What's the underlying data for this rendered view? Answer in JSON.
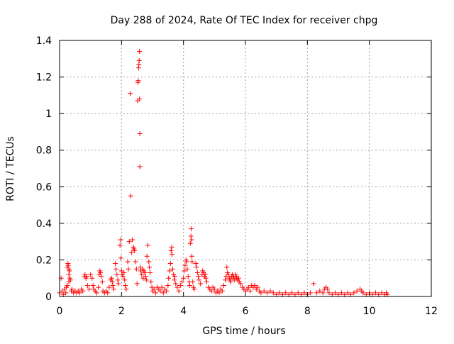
{
  "chart_data": {
    "type": "scatter",
    "title": "Day 288 of 2024, Rate Of TEC Index for receiver chpg",
    "xlabel": "GPS time / hours",
    "ylabel": "ROTI / TECUs",
    "xlim": [
      0,
      12
    ],
    "ylim": [
      0,
      1.4
    ],
    "xticks": [
      0,
      2,
      4,
      6,
      8,
      10,
      12
    ],
    "xtick_labels": [
      "0",
      "2",
      "4",
      "6",
      "8",
      "10",
      "12"
    ],
    "yticks": [
      0,
      0.2,
      0.4,
      0.6,
      0.8,
      1.0,
      1.2,
      1.4
    ],
    "ytick_labels": [
      "0",
      "0.2",
      "0.4",
      "0.6",
      "0.8",
      "1",
      "1.2",
      "1.4"
    ],
    "grid": true,
    "marker": "+",
    "color": "#ff0000",
    "series": [
      {
        "name": "ROTI",
        "points": [
          [
            0.0,
            0.02
          ],
          [
            0.05,
            0.1
          ],
          [
            0.08,
            0.03
          ],
          [
            0.12,
            0.01
          ],
          [
            0.15,
            0.04
          ],
          [
            0.2,
            0.02
          ],
          [
            0.22,
            0.05
          ],
          [
            0.25,
            0.16
          ],
          [
            0.27,
            0.18
          ],
          [
            0.28,
            0.17
          ],
          [
            0.3,
            0.15
          ],
          [
            0.3,
            0.12
          ],
          [
            0.32,
            0.14
          ],
          [
            0.33,
            0.1
          ],
          [
            0.3,
            0.08
          ],
          [
            0.35,
            0.09
          ],
          [
            0.25,
            0.06
          ],
          [
            0.38,
            0.03
          ],
          [
            0.4,
            0.04
          ],
          [
            0.45,
            0.02
          ],
          [
            0.5,
            0.03
          ],
          [
            0.55,
            0.02
          ],
          [
            0.6,
            0.03
          ],
          [
            0.65,
            0.02
          ],
          [
            0.7,
            0.04
          ],
          [
            0.75,
            0.03
          ],
          [
            0.8,
            0.11
          ],
          [
            0.82,
            0.12
          ],
          [
            0.85,
            0.1
          ],
          [
            0.88,
            0.11
          ],
          [
            0.9,
            0.06
          ],
          [
            0.95,
            0.04
          ],
          [
            1.0,
            0.12
          ],
          [
            1.05,
            0.1
          ],
          [
            1.08,
            0.06
          ],
          [
            1.1,
            0.04
          ],
          [
            1.15,
            0.03
          ],
          [
            1.2,
            0.02
          ],
          [
            1.25,
            0.05
          ],
          [
            1.28,
            0.12
          ],
          [
            1.3,
            0.14
          ],
          [
            1.32,
            0.13
          ],
          [
            1.35,
            0.11
          ],
          [
            1.38,
            0.08
          ],
          [
            1.4,
            0.03
          ],
          [
            1.45,
            0.02
          ],
          [
            1.5,
            0.03
          ],
          [
            1.55,
            0.02
          ],
          [
            1.6,
            0.05
          ],
          [
            1.65,
            0.09
          ],
          [
            1.68,
            0.1
          ],
          [
            1.7,
            0.08
          ],
          [
            1.72,
            0.06
          ],
          [
            1.75,
            0.04
          ],
          [
            1.8,
            0.18
          ],
          [
            1.82,
            0.15
          ],
          [
            1.85,
            0.12
          ],
          [
            1.88,
            0.09
          ],
          [
            1.9,
            0.07
          ],
          [
            1.95,
            0.28
          ],
          [
            1.97,
            0.31
          ],
          [
            1.98,
            0.21
          ],
          [
            2.0,
            0.14
          ],
          [
            2.02,
            0.12
          ],
          [
            2.05,
            0.11
          ],
          [
            2.08,
            0.13
          ],
          [
            2.1,
            0.09
          ],
          [
            2.12,
            0.06
          ],
          [
            2.15,
            0.04
          ],
          [
            2.2,
            0.19
          ],
          [
            2.22,
            0.15
          ],
          [
            2.25,
            0.3
          ],
          [
            2.28,
            1.11
          ],
          [
            2.3,
            0.55
          ],
          [
            2.32,
            0.24
          ],
          [
            2.35,
            0.31
          ],
          [
            2.38,
            0.27
          ],
          [
            2.4,
            0.26
          ],
          [
            2.42,
            0.25
          ],
          [
            2.45,
            0.19
          ],
          [
            2.48,
            0.15
          ],
          [
            2.5,
            0.07
          ],
          [
            2.52,
            1.07
          ],
          [
            2.53,
            1.17
          ],
          [
            2.54,
            1.18
          ],
          [
            2.55,
            1.25
          ],
          [
            2.56,
            1.27
          ],
          [
            2.57,
            1.29
          ],
          [
            2.58,
            1.34
          ],
          [
            2.58,
            1.08
          ],
          [
            2.59,
            0.89
          ],
          [
            2.59,
            0.71
          ],
          [
            2.6,
            0.16
          ],
          [
            2.62,
            0.14
          ],
          [
            2.65,
            0.12
          ],
          [
            2.68,
            0.15
          ],
          [
            2.7,
            0.1
          ],
          [
            2.72,
            0.14
          ],
          [
            2.75,
            0.13
          ],
          [
            2.78,
            0.11
          ],
          [
            2.8,
            0.09
          ],
          [
            2.82,
            0.22
          ],
          [
            2.85,
            0.28
          ],
          [
            2.88,
            0.19
          ],
          [
            2.9,
            0.16
          ],
          [
            2.92,
            0.13
          ],
          [
            2.95,
            0.08
          ],
          [
            2.98,
            0.05
          ],
          [
            3.0,
            0.03
          ],
          [
            3.05,
            0.04
          ],
          [
            3.1,
            0.02
          ],
          [
            3.15,
            0.05
          ],
          [
            3.2,
            0.04
          ],
          [
            3.25,
            0.03
          ],
          [
            3.3,
            0.05
          ],
          [
            3.35,
            0.02
          ],
          [
            3.4,
            0.04
          ],
          [
            3.45,
            0.03
          ],
          [
            3.5,
            0.06
          ],
          [
            3.52,
            0.1
          ],
          [
            3.55,
            0.14
          ],
          [
            3.58,
            0.18
          ],
          [
            3.6,
            0.25
          ],
          [
            3.62,
            0.27
          ],
          [
            3.63,
            0.23
          ],
          [
            3.65,
            0.15
          ],
          [
            3.68,
            0.12
          ],
          [
            3.7,
            0.09
          ],
          [
            3.72,
            0.11
          ],
          [
            3.75,
            0.07
          ],
          [
            3.8,
            0.05
          ],
          [
            3.85,
            0.03
          ],
          [
            3.9,
            0.06
          ],
          [
            3.95,
            0.08
          ],
          [
            4.0,
            0.1
          ],
          [
            4.02,
            0.14
          ],
          [
            4.05,
            0.17
          ],
          [
            4.08,
            0.2
          ],
          [
            4.1,
            0.19
          ],
          [
            4.12,
            0.15
          ],
          [
            4.15,
            0.11
          ],
          [
            4.18,
            0.08
          ],
          [
            4.2,
            0.06
          ],
          [
            4.22,
            0.29
          ],
          [
            4.24,
            0.33
          ],
          [
            4.25,
            0.37
          ],
          [
            4.26,
            0.31
          ],
          [
            4.27,
            0.22
          ],
          [
            4.28,
            0.19
          ],
          [
            4.3,
            0.08
          ],
          [
            4.32,
            0.05
          ],
          [
            4.35,
            0.04
          ],
          [
            4.4,
            0.18
          ],
          [
            4.42,
            0.16
          ],
          [
            4.45,
            0.13
          ],
          [
            4.48,
            0.11
          ],
          [
            4.5,
            0.09
          ],
          [
            4.55,
            0.07
          ],
          [
            4.6,
            0.12
          ],
          [
            4.62,
            0.14
          ],
          [
            4.65,
            0.13
          ],
          [
            4.68,
            0.11
          ],
          [
            4.7,
            0.12
          ],
          [
            4.72,
            0.1
          ],
          [
            4.75,
            0.08
          ],
          [
            4.8,
            0.05
          ],
          [
            4.85,
            0.04
          ],
          [
            4.9,
            0.03
          ],
          [
            4.95,
            0.05
          ],
          [
            5.0,
            0.04
          ],
          [
            5.05,
            0.02
          ],
          [
            5.1,
            0.03
          ],
          [
            5.15,
            0.02
          ],
          [
            5.2,
            0.04
          ],
          [
            5.25,
            0.03
          ],
          [
            5.3,
            0.06
          ],
          [
            5.35,
            0.09
          ],
          [
            5.38,
            0.11
          ],
          [
            5.4,
            0.16
          ],
          [
            5.42,
            0.13
          ],
          [
            5.45,
            0.12
          ],
          [
            5.48,
            0.1
          ],
          [
            5.5,
            0.09
          ],
          [
            5.52,
            0.08
          ],
          [
            5.55,
            0.11
          ],
          [
            5.58,
            0.12
          ],
          [
            5.6,
            0.1
          ],
          [
            5.62,
            0.11
          ],
          [
            5.65,
            0.09
          ],
          [
            5.68,
            0.12
          ],
          [
            5.7,
            0.11
          ],
          [
            5.72,
            0.1
          ],
          [
            5.75,
            0.09
          ],
          [
            5.78,
            0.1
          ],
          [
            5.8,
            0.08
          ],
          [
            5.85,
            0.07
          ],
          [
            5.9,
            0.05
          ],
          [
            5.95,
            0.04
          ],
          [
            6.0,
            0.03
          ],
          [
            6.05,
            0.04
          ],
          [
            6.1,
            0.05
          ],
          [
            6.15,
            0.03
          ],
          [
            6.2,
            0.06
          ],
          [
            6.25,
            0.05
          ],
          [
            6.3,
            0.06
          ],
          [
            6.35,
            0.04
          ],
          [
            6.4,
            0.05
          ],
          [
            6.45,
            0.03
          ],
          [
            6.5,
            0.02
          ],
          [
            6.6,
            0.03
          ],
          [
            6.7,
            0.02
          ],
          [
            6.8,
            0.03
          ],
          [
            6.9,
            0.02
          ],
          [
            7.0,
            0.01
          ],
          [
            7.1,
            0.02
          ],
          [
            7.2,
            0.01
          ],
          [
            7.3,
            0.02
          ],
          [
            7.4,
            0.01
          ],
          [
            7.5,
            0.02
          ],
          [
            7.6,
            0.01
          ],
          [
            7.7,
            0.02
          ],
          [
            7.8,
            0.01
          ],
          [
            7.9,
            0.02
          ],
          [
            8.0,
            0.01
          ],
          [
            8.1,
            0.02
          ],
          [
            8.2,
            0.07
          ],
          [
            8.3,
            0.02
          ],
          [
            8.4,
            0.03
          ],
          [
            8.5,
            0.02
          ],
          [
            8.55,
            0.04
          ],
          [
            8.6,
            0.05
          ],
          [
            8.65,
            0.04
          ],
          [
            8.7,
            0.02
          ],
          [
            8.8,
            0.01
          ],
          [
            8.9,
            0.02
          ],
          [
            9.0,
            0.01
          ],
          [
            9.1,
            0.02
          ],
          [
            9.2,
            0.01
          ],
          [
            9.3,
            0.02
          ],
          [
            9.4,
            0.01
          ],
          [
            9.5,
            0.02
          ],
          [
            9.6,
            0.03
          ],
          [
            9.7,
            0.04
          ],
          [
            9.75,
            0.03
          ],
          [
            9.8,
            0.02
          ],
          [
            9.9,
            0.01
          ],
          [
            10.0,
            0.02
          ],
          [
            10.1,
            0.01
          ],
          [
            10.2,
            0.02
          ],
          [
            10.3,
            0.01
          ],
          [
            10.4,
            0.02
          ],
          [
            10.5,
            0.01
          ],
          [
            10.55,
            0.02
          ],
          [
            10.58,
            0.01
          ]
        ]
      }
    ]
  }
}
